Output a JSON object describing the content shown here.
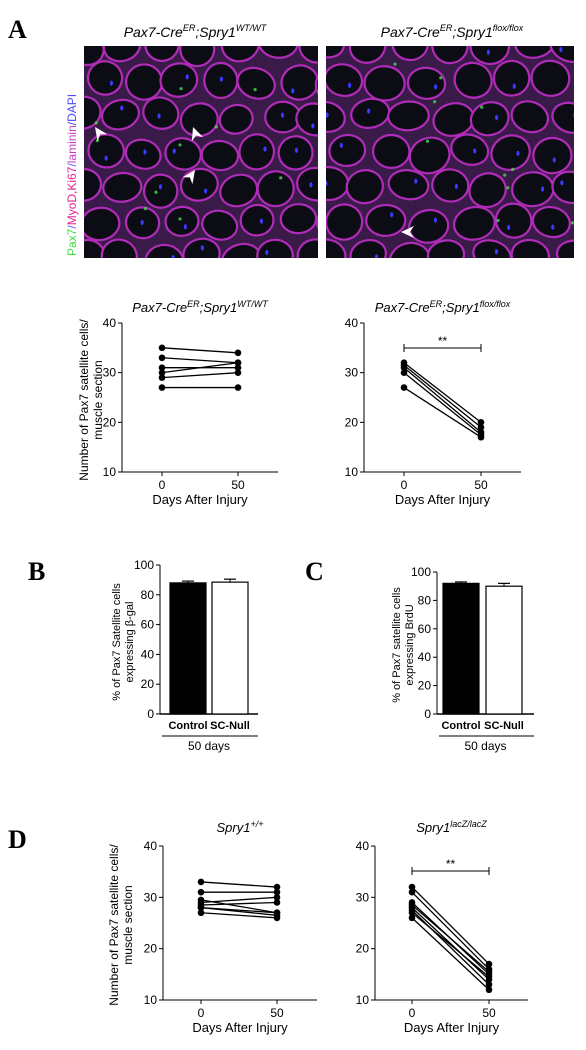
{
  "panels": {
    "A": {
      "letter": "A",
      "micrographs": [
        {
          "genotype_main": "Pax7-Cre",
          "genotype_sup1": "ER",
          "genotype_mid": ";Spry1",
          "genotype_sup2": "WT/WT"
        },
        {
          "genotype_main": "Pax7-Cre",
          "genotype_sup1": "ER",
          "genotype_mid": ";Spry1",
          "genotype_sup2": "flox/flox"
        }
      ],
      "stain_label": [
        {
          "text": "Pax7",
          "color": "#3fdc3f"
        },
        {
          "text": "/",
          "color": "#6a6aff"
        },
        {
          "text": "MyoD,Ki67",
          "color": "#e8208f"
        },
        {
          "text": "/",
          "color": "#6a6aff"
        },
        {
          "text": "laminin",
          "color": "#c83cc8"
        },
        {
          "text": "/DAPI",
          "color": "#4a4aff"
        }
      ]
    },
    "B": {
      "letter": "B"
    },
    "C": {
      "letter": "C"
    },
    "D": {
      "letter": "D"
    }
  },
  "chart_data": [
    {
      "id": "A-left",
      "type": "line",
      "title_main": "Pax7-Cre",
      "title_sup1": "ER",
      "title_mid": ";Spry1",
      "title_sup2": "WT/WT",
      "ylabel_line1": "Number of Pax7 satellite cells/",
      "ylabel_line2": "muscle section",
      "xlabel": "Days After Injury",
      "x": [
        0,
        50
      ],
      "x_ticks": [
        "0",
        "50"
      ],
      "ylim": [
        10,
        40
      ],
      "y_ticks": [
        10,
        20,
        30,
        40
      ],
      "series": [
        {
          "values": [
            35,
            34
          ]
        },
        {
          "values": [
            33,
            32
          ]
        },
        {
          "values": [
            31,
            31
          ]
        },
        {
          "values": [
            30,
            32
          ]
        },
        {
          "values": [
            29,
            30
          ]
        },
        {
          "values": [
            27,
            27
          ]
        }
      ],
      "significance": null
    },
    {
      "id": "A-right",
      "type": "line",
      "title_main": "Pax7-Cre",
      "title_sup1": "ER",
      "title_mid": ";Spry1",
      "title_sup2": "flox/flox",
      "xlabel": "Days After Injury",
      "x": [
        0,
        50
      ],
      "x_ticks": [
        "0",
        "50"
      ],
      "ylim": [
        10,
        40
      ],
      "y_ticks": [
        10,
        20,
        30,
        40
      ],
      "series": [
        {
          "values": [
            32,
            20
          ]
        },
        {
          "values": [
            31.5,
            19
          ]
        },
        {
          "values": [
            31,
            18
          ]
        },
        {
          "values": [
            30,
            17.5
          ]
        },
        {
          "values": [
            27,
            17
          ]
        }
      ],
      "significance": "**"
    },
    {
      "id": "B",
      "type": "bar",
      "ylabel_line1": "% of Pax7 Satellite cells",
      "ylabel_line2": "expressing β-gal",
      "categories": [
        "Control",
        "SC-Null"
      ],
      "values": [
        88,
        88.5
      ],
      "errors": [
        1.2,
        2
      ],
      "fills": [
        "#000000",
        "#ffffff"
      ],
      "group_label": "50 days",
      "ylim": [
        0,
        100
      ],
      "y_ticks": [
        0,
        20,
        40,
        60,
        80,
        100
      ]
    },
    {
      "id": "C",
      "type": "bar",
      "ylabel_line1": "% of Pax7 satellite cells",
      "ylabel_line2": "expressing BrdU",
      "categories": [
        "Control",
        "SC-Null"
      ],
      "values": [
        92,
        90
      ],
      "errors": [
        1,
        2
      ],
      "fills": [
        "#000000",
        "#ffffff"
      ],
      "group_label": "50 days",
      "ylim": [
        0,
        100
      ],
      "y_ticks": [
        0,
        20,
        40,
        60,
        80,
        100
      ]
    },
    {
      "id": "D-left",
      "type": "line",
      "title_main": "Spry1",
      "title_sup1": "+/+",
      "title_mid": "",
      "title_sup2": "",
      "ylabel_line1": "Number of Pax7 satellite cells/",
      "ylabel_line2": "muscle section",
      "xlabel": "Days After Injury",
      "x": [
        0,
        50
      ],
      "x_ticks": [
        "0",
        "50"
      ],
      "ylim": [
        10,
        40
      ],
      "y_ticks": [
        10,
        20,
        30,
        40
      ],
      "series": [
        {
          "values": [
            33,
            32
          ]
        },
        {
          "values": [
            31,
            31
          ]
        },
        {
          "values": [
            29,
            30
          ]
        },
        {
          "values": [
            28.5,
            29
          ]
        },
        {
          "values": [
            28,
            27
          ]
        },
        {
          "values": [
            27,
            26
          ]
        },
        {
          "values": [
            29.5,
            27
          ]
        },
        {
          "values": [
            28,
            26.5
          ]
        }
      ],
      "significance": null
    },
    {
      "id": "D-right",
      "type": "line",
      "title_main": "Spry1",
      "title_sup1": "lacZ/lacZ",
      "title_mid": "",
      "title_sup2": "",
      "xlabel": "Days After Injury",
      "x": [
        0,
        50
      ],
      "x_ticks": [
        "0",
        "50"
      ],
      "ylim": [
        10,
        40
      ],
      "y_ticks": [
        10,
        20,
        30,
        40
      ],
      "series": [
        {
          "values": [
            32,
            17
          ]
        },
        {
          "values": [
            31,
            16
          ]
        },
        {
          "values": [
            29,
            15
          ]
        },
        {
          "values": [
            28,
            14
          ]
        },
        {
          "values": [
            27.5,
            13
          ]
        },
        {
          "values": [
            27,
            14.5
          ]
        },
        {
          "values": [
            26,
            12
          ]
        },
        {
          "values": [
            28.5,
            15.5
          ]
        }
      ],
      "significance": "**"
    }
  ]
}
